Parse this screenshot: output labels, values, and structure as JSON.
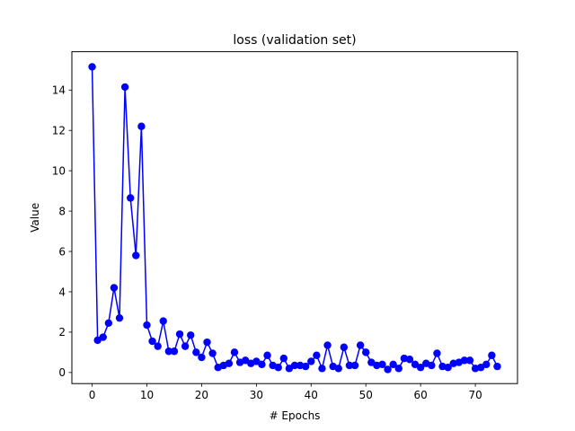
{
  "chart_data": {
    "type": "line",
    "title": "loss (validation set)",
    "xlabel": "# Epochs",
    "ylabel": "Value",
    "xlim": [
      -3.7,
      77.7
    ],
    "ylim": [
      -0.55,
      15.9
    ],
    "xticks": [
      0,
      10,
      20,
      30,
      40,
      50,
      60,
      70
    ],
    "yticks": [
      0,
      2,
      4,
      6,
      8,
      10,
      12,
      14
    ],
    "grid": false,
    "legend": "none",
    "series": [
      {
        "color": "#0000ff",
        "marker": "circle",
        "x": [
          0,
          1,
          2,
          3,
          4,
          5,
          6,
          7,
          8,
          9,
          10,
          11,
          12,
          13,
          14,
          15,
          16,
          17,
          18,
          19,
          20,
          21,
          22,
          23,
          24,
          25,
          26,
          27,
          28,
          29,
          30,
          31,
          32,
          33,
          34,
          35,
          36,
          37,
          38,
          39,
          40,
          41,
          42,
          43,
          44,
          45,
          46,
          47,
          48,
          49,
          50,
          51,
          52,
          53,
          54,
          55,
          56,
          57,
          58,
          59,
          60,
          61,
          62,
          63,
          64,
          65,
          66,
          67,
          68,
          69,
          70,
          71,
          72,
          73,
          74
        ],
        "values": [
          15.15,
          1.6,
          1.75,
          2.45,
          4.2,
          2.7,
          14.15,
          8.65,
          5.8,
          12.2,
          2.35,
          1.55,
          1.3,
          2.55,
          1.05,
          1.05,
          1.9,
          1.3,
          1.85,
          1.0,
          0.75,
          1.5,
          0.95,
          0.25,
          0.35,
          0.45,
          1.0,
          0.5,
          0.6,
          0.45,
          0.55,
          0.4,
          0.85,
          0.35,
          0.25,
          0.7,
          0.2,
          0.35,
          0.35,
          0.3,
          0.55,
          0.85,
          0.2,
          1.35,
          0.3,
          0.2,
          1.25,
          0.35,
          0.35,
          1.35,
          1.0,
          0.5,
          0.35,
          0.4,
          0.15,
          0.4,
          0.2,
          0.7,
          0.65,
          0.4,
          0.25,
          0.45,
          0.35,
          0.95,
          0.3,
          0.25,
          0.45,
          0.5,
          0.6,
          0.6,
          0.2,
          0.25,
          0.4,
          0.85,
          0.3
        ]
      }
    ]
  }
}
